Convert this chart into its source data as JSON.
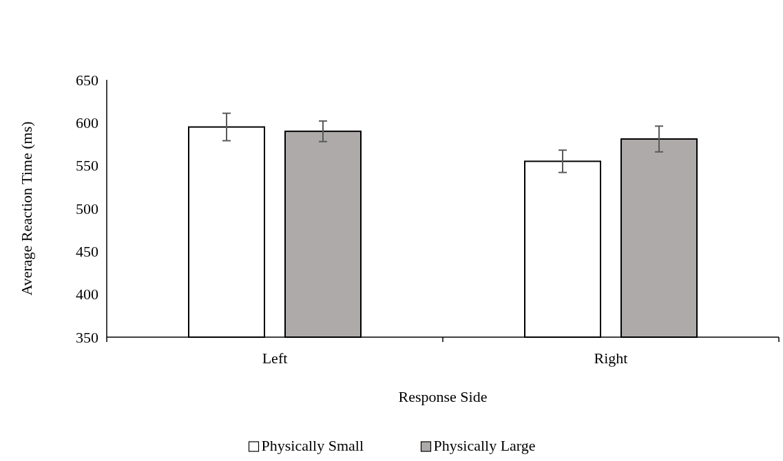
{
  "chart_data": {
    "type": "bar",
    "xlabel": "Response Side",
    "ylabel": "Average Reaction Time (ms)",
    "categories": [
      "Left",
      "Right"
    ],
    "series": [
      {
        "name": "Physically Small",
        "color": "#ffffff",
        "values": [
          595,
          555
        ],
        "errors": [
          16,
          13
        ]
      },
      {
        "name": "Physically Large",
        "color": "#aeaaaa",
        "values": [
          590,
          581
        ],
        "errors": [
          12,
          15
        ]
      }
    ],
    "ylim": [
      350,
      650
    ],
    "yticks": [
      350,
      400,
      450,
      500,
      550,
      600,
      650
    ],
    "grid": false,
    "legend": "bottom"
  }
}
